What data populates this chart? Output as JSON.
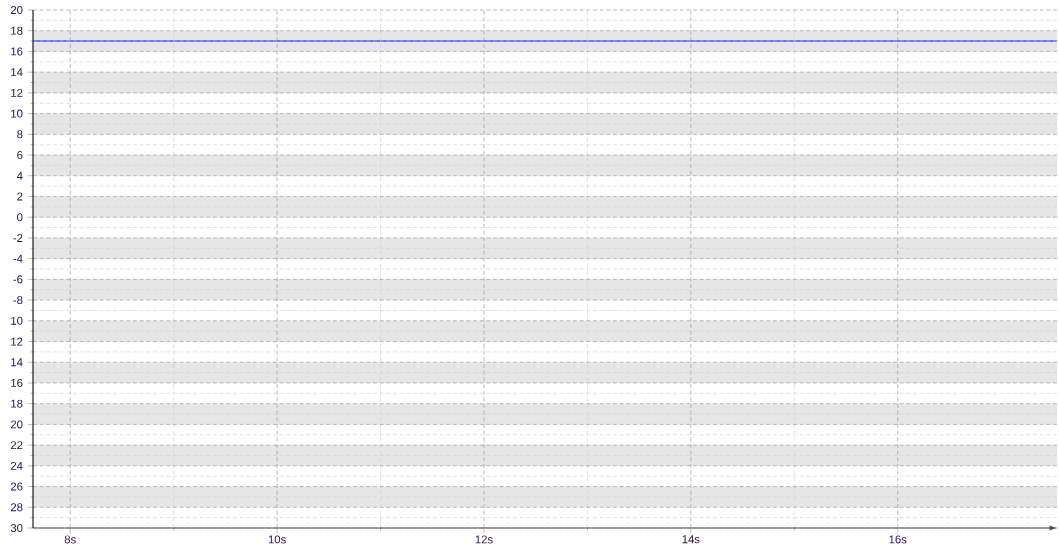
{
  "chart_data": {
    "type": "line",
    "x": [
      7.64,
      17.54
    ],
    "series": [
      {
        "color": "#6e6ef0",
        "values": [
          17,
          17
        ]
      }
    ],
    "xlim": [
      7.64,
      17.54
    ],
    "ylim": [
      -30,
      20
    ],
    "xticks": [
      {
        "value": 8,
        "label": "8s"
      },
      {
        "value": 10,
        "label": "10s"
      },
      {
        "value": 12,
        "label": "12s"
      },
      {
        "value": 14,
        "label": "14s"
      },
      {
        "value": 16,
        "label": "16s"
      }
    ],
    "yticks": [
      {
        "value": -30,
        "label": "30"
      },
      {
        "value": -28,
        "label": "28"
      },
      {
        "value": -26,
        "label": "26"
      },
      {
        "value": -24,
        "label": "24"
      },
      {
        "value": -22,
        "label": "22"
      },
      {
        "value": -20,
        "label": "20"
      },
      {
        "value": -18,
        "label": "18"
      },
      {
        "value": -16,
        "label": "16"
      },
      {
        "value": -14,
        "label": "14"
      },
      {
        "value": -12,
        "label": "12"
      },
      {
        "value": -10,
        "label": "10"
      },
      -8,
      -6,
      -4,
      -2,
      0,
      2,
      4,
      6,
      8,
      10,
      12,
      14,
      16,
      18,
      20
    ],
    "grid": true,
    "bands": [
      {
        "axis": "y",
        "from": 16,
        "to": 18,
        "color": "#e6e6e6"
      },
      {
        "axis": "y",
        "from": 12,
        "to": 14,
        "color": "#e6e6e6"
      },
      {
        "axis": "y",
        "from": 8,
        "to": 10,
        "color": "#e6e6e6"
      },
      {
        "axis": "y",
        "from": 4,
        "to": 6,
        "color": "#e6e6e6"
      },
      {
        "axis": "y",
        "from": 0,
        "to": 2,
        "color": "#e6e6e6"
      },
      {
        "axis": "y",
        "from": -4,
        "to": -2,
        "color": "#e6e6e6"
      },
      {
        "axis": "y",
        "from": -8,
        "to": -6,
        "color": "#e6e6e6"
      },
      {
        "axis": "y",
        "from": -12,
        "to": -10,
        "color": "#e6e6e6"
      },
      {
        "axis": "y",
        "from": -16,
        "to": -14,
        "color": "#e6e6e6"
      },
      {
        "axis": "y",
        "from": -20,
        "to": -18,
        "color": "#e6e6e6"
      },
      {
        "axis": "y",
        "from": -24,
        "to": -22,
        "color": "#e6e6e6"
      },
      {
        "axis": "y",
        "from": -28,
        "to": -26,
        "color": "#e6e6e6"
      }
    ]
  }
}
